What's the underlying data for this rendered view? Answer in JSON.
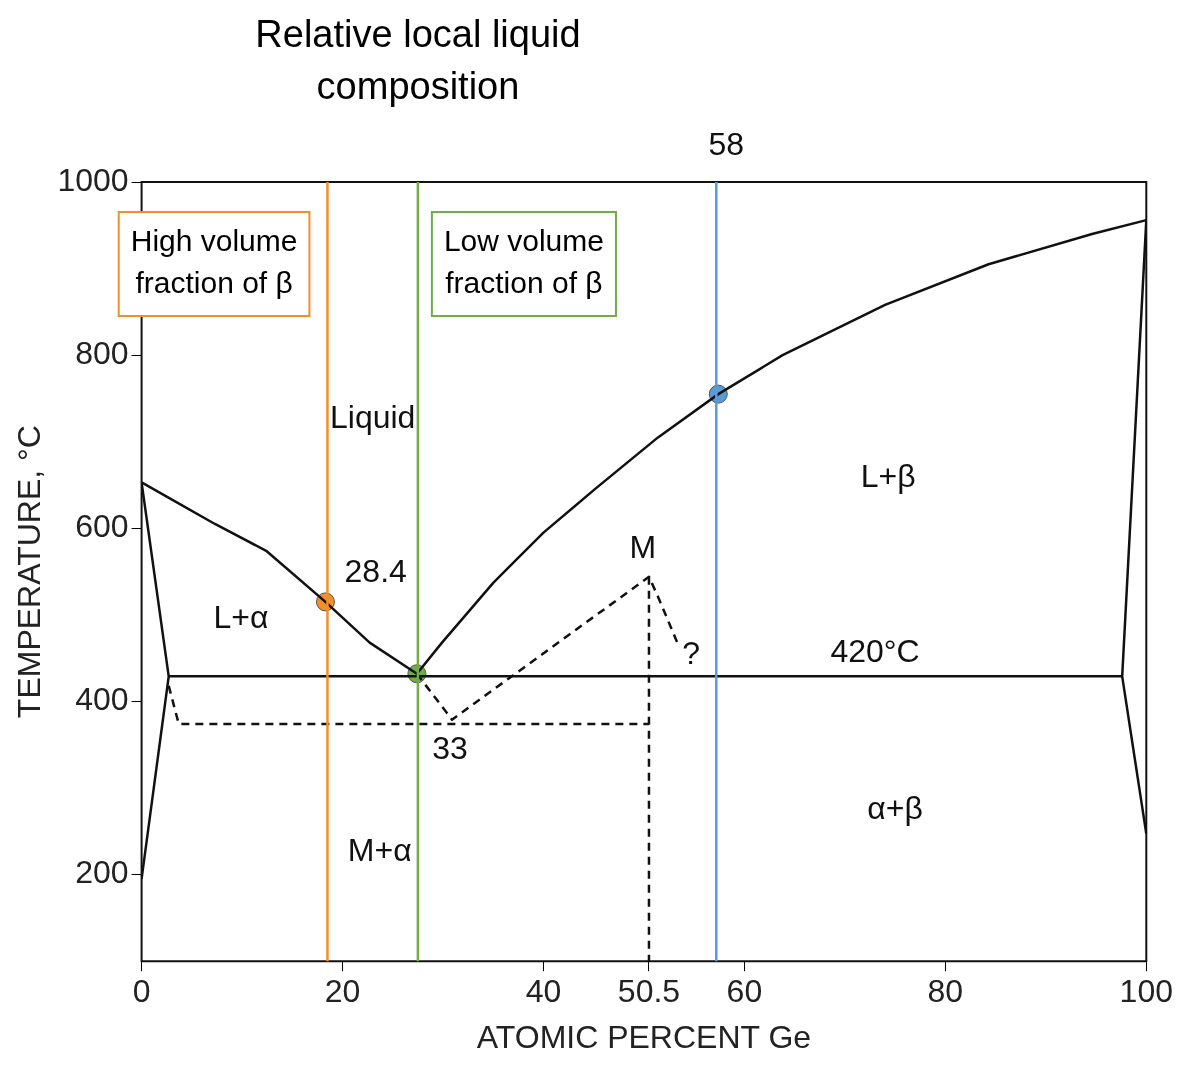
{
  "chart_data": {
    "type": "line",
    "title": "Relative local liquid composition",
    "xlabel": "ATOMIC PERCENT Ge",
    "ylabel": "TEMPERATURE, °C",
    "xlim": [
      0,
      100
    ],
    "xticks": [
      0,
      20,
      40,
      50.5,
      60,
      80,
      100
    ],
    "ylim": [
      100,
      1000
    ],
    "yticks": [
      200,
      400,
      600,
      800,
      1000
    ],
    "grid": false,
    "legend": false,
    "marker": "none",
    "series": [
      {
        "color": "#111111",
        "x": [
          0,
          7.3,
          12.4,
          18.3,
          22.7,
          27.4
        ],
        "values": [
          653,
          605,
          574,
          515,
          468,
          432
        ]
      },
      {
        "color": "#111111",
        "x": [
          27.4,
          29.9,
          35.0,
          40.0,
          45.3,
          51.4,
          57.4,
          63.8,
          74.0,
          84.3,
          94.6,
          100
        ],
        "values": [
          432,
          468,
          537,
          595,
          647,
          705,
          755,
          800,
          858,
          905,
          940,
          956
        ]
      },
      {
        "color": "#111111",
        "x": [
          0,
          2.7,
          0
        ],
        "values": [
          653,
          429,
          195
        ]
      },
      {
        "color": "#111111",
        "x": [
          2.7,
          97.6
        ],
        "values": [
          429,
          429
        ]
      },
      {
        "color": "#111111",
        "x": [
          100,
          97.6,
          100
        ],
        "values": [
          956,
          429,
          247
        ]
      },
      {
        "color": "#111111",
        "line_style": "dashed",
        "x": [
          2.7,
          3.7,
          50.5
        ],
        "values": [
          418,
          374,
          374
        ]
      },
      {
        "color": "#111111",
        "line_style": "dashed",
        "x": [
          27.4,
          30.9,
          50.5,
          51.4,
          53.5
        ],
        "values": [
          432,
          379,
          544,
          521,
          463
        ]
      },
      {
        "color": "#111111",
        "line_style": "dashed",
        "x": [
          50.5,
          50.5
        ],
        "values": [
          544,
          100
        ]
      },
      {
        "type": "scatter",
        "marker": "circle",
        "colors": [
          "#f28e2b",
          "#70ad47",
          "#5b9bd5"
        ],
        "x": [
          18.3,
          27.4,
          57.4
        ],
        "values": [
          515,
          432,
          755
        ]
      }
    ],
    "ref_lines": [
      {
        "axis": "x",
        "value": 18.5,
        "label": "High volume fraction of β",
        "color": "#f28e2b"
      },
      {
        "axis": "x",
        "value": 27.5,
        "label": "Low volume fraction of β",
        "color": "#70ad47"
      },
      {
        "axis": "x",
        "value": 57.2,
        "color": "#5b9bd5"
      }
    ],
    "annotations": [
      {
        "text": "58",
        "x": 57.2,
        "y": 1000
      },
      "Liquid",
      "L+α",
      "28.4",
      "M",
      "?",
      "420°C",
      "33",
      "L+β",
      "α+β",
      "M+α"
    ]
  }
}
